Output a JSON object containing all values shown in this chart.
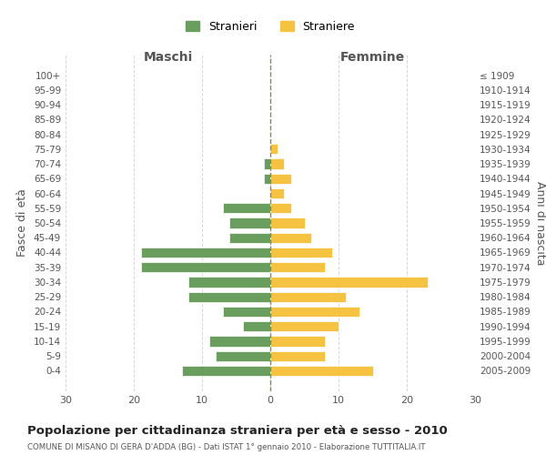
{
  "age_groups": [
    "0-4",
    "5-9",
    "10-14",
    "15-19",
    "20-24",
    "25-29",
    "30-34",
    "35-39",
    "40-44",
    "45-49",
    "50-54",
    "55-59",
    "60-64",
    "65-69",
    "70-74",
    "75-79",
    "80-84",
    "85-89",
    "90-94",
    "95-99",
    "100+"
  ],
  "birth_years": [
    "2005-2009",
    "2000-2004",
    "1995-1999",
    "1990-1994",
    "1985-1989",
    "1980-1984",
    "1975-1979",
    "1970-1974",
    "1965-1969",
    "1960-1964",
    "1955-1959",
    "1950-1954",
    "1945-1949",
    "1940-1944",
    "1935-1939",
    "1930-1934",
    "1925-1929",
    "1920-1924",
    "1915-1919",
    "1910-1914",
    "≤ 1909"
  ],
  "maschi": [
    13,
    8,
    9,
    4,
    7,
    12,
    12,
    19,
    19,
    6,
    6,
    7,
    0,
    1,
    1,
    0,
    0,
    0,
    0,
    0,
    0
  ],
  "femmine": [
    15,
    8,
    8,
    10,
    13,
    11,
    23,
    8,
    9,
    6,
    5,
    3,
    2,
    3,
    2,
    1,
    0,
    0,
    0,
    0,
    0
  ],
  "color_maschi": "#6a9e5e",
  "color_femmine": "#f5c242",
  "title": "Popolazione per cittadinanza straniera per età e sesso - 2010",
  "subtitle": "COMUNE DI MISANO DI GERA D'ADDA (BG) - Dati ISTAT 1° gennaio 2010 - Elaborazione TUTTITALIA.IT",
  "xlabel_left": "Maschi",
  "xlabel_right": "Femmine",
  "ylabel_left": "Fasce di età",
  "ylabel_right": "Anni di nascita",
  "legend_maschi": "Stranieri",
  "legend_femmine": "Straniere",
  "xlim": 30,
  "background_color": "#ffffff",
  "grid_color": "#cccccc"
}
